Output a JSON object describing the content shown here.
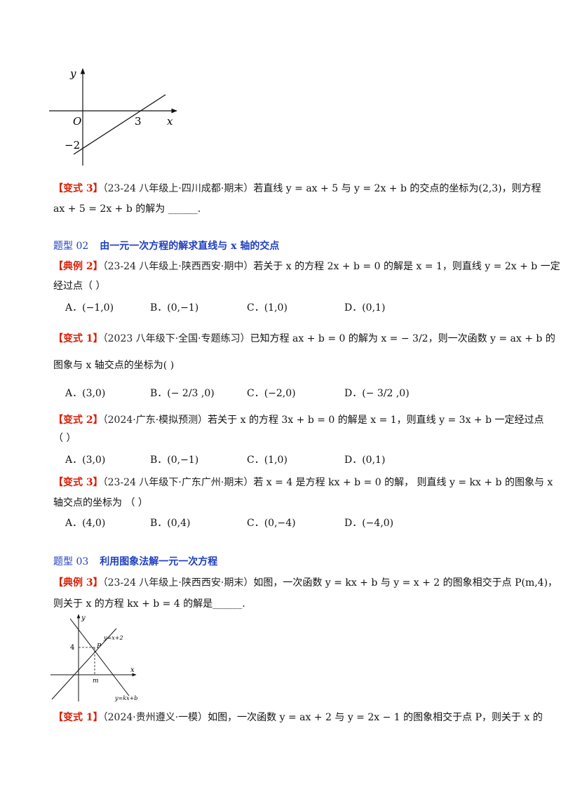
{
  "graph1": {
    "y_label": "y",
    "x_label": "x",
    "origin": "O",
    "x_tick": "3",
    "y_tick": "−2"
  },
  "var3a": {
    "tag": "【变式 3】",
    "source": "（23-24 八年级上·四川成都·期末）",
    "line1": "若直线 y = ax + 5 与 y = 2x + b 的交点的坐标为(2,3)，则方程",
    "line2": "ax + 5 = 2x + b 的解为 ______."
  },
  "type02": {
    "num": "题型 02",
    "title": "由一元一次方程的解求直线与 x 轴的交点"
  },
  "ex2": {
    "tag": "【典例 2】",
    "source": "（23-24 八年级上·陕西西安·期中）",
    "line1": "若关于 x 的方程 2x + b = 0 的解是 x = 1，则直线 y = 2x + b 一定",
    "line2": "经过点（    ）",
    "options": [
      "A．(−1,0)",
      "B．(0,−1)",
      "C．(1,0)",
      "D．(0,1)"
    ]
  },
  "var1b": {
    "tag": "【变式 1】",
    "source": "（2023 八年级下·全国·专题练习）",
    "line1": "已知方程 ax + b = 0 的解为 x = − 3/2，则一次函数 y = ax + b 的",
    "line2": "图象与 x 轴交点的坐标为(    )",
    "options": [
      "A．(3,0)",
      "B．(− 2/3 ,0)",
      "C．(−2,0)",
      "D．(− 3/2 ,0)"
    ]
  },
  "var2b": {
    "tag": "【变式 2】",
    "source": "（2024·广东·模拟预测）",
    "line1": "若关于 x 的方程 3x + b = 0 的解是 x = 1，则直线 y = 3x + b 一定经过点",
    "line2": "（    ）",
    "options": [
      "A．(3,0)",
      "B．(0,−1)",
      "C．(1,0)",
      "D．(0,1)"
    ]
  },
  "var3b": {
    "tag": "【变式 3】",
    "source": "（23-24 八年级下·广东广州·期末）",
    "line1": "若 x = 4 是方程 kx + b = 0 的解，  则直线 y = kx + b 的图象与 x",
    "line2": "轴交点的坐标为 （    ）",
    "options": [
      "A．(4,0)",
      "B．(0,4)",
      "C．(0,−4)",
      "D．(−4,0)"
    ]
  },
  "type03": {
    "num": "题型 03",
    "title": "利用图象法解一元一次方程"
  },
  "ex3": {
    "tag": "【典例 3】",
    "source": "（23-24 八年级上·陕西西安·期末）",
    "line1": "如图，一次函数 y = kx + b 与 y = x + 2 的图象相交于点 P(m,4)，",
    "line2": "则关于 x 的方程 kx + b = 4 的解是______."
  },
  "graph2": {
    "y_label": "y",
    "x_label": "x",
    "y_tick": "4",
    "x_tick": "m",
    "point": "P",
    "line1_label": "y=x+2",
    "line2_label": "y=kx+b"
  },
  "var1c": {
    "tag": "【变式 1】",
    "source": "（2024·贵州遵义·一模）",
    "line1": "如图，一次函数 y = ax + 2 与 y = 2x − 1 的图象相交于点 P，则关于 x 的"
  }
}
